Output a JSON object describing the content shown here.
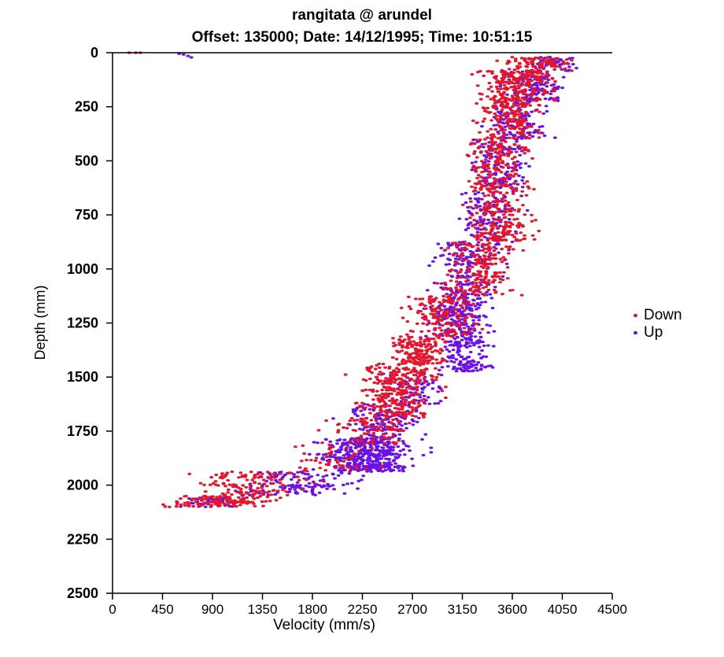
{
  "chart_data": {
    "type": "scatter",
    "title": "rangitata @ arundel",
    "subtitle": "Offset: 135000; Date: 14/12/1995; Time: 10:51:15",
    "xlabel": "Velocity (mm/s)",
    "ylabel": "Depth (mm)",
    "xlim": [
      0,
      4500
    ],
    "ylim": [
      2500,
      0
    ],
    "xticks": [
      "0",
      "450",
      "900",
      "1350",
      "1800",
      "2250",
      "2700",
      "3150",
      "3600",
      "4050",
      "4500"
    ],
    "yticks": [
      "0",
      "250",
      "500",
      "750",
      "1000",
      "1250",
      "1500",
      "1750",
      "2000",
      "2250",
      "2500"
    ],
    "legend_position": "right",
    "series": [
      {
        "name": "Down",
        "color": "#e3162e",
        "trend": [
          {
            "depth": 20,
            "velocity": 3800,
            "spread": 350,
            "count": 60
          },
          {
            "depth": 150,
            "velocity": 3650,
            "spread": 380,
            "count": 160
          },
          {
            "depth": 300,
            "velocity": 3550,
            "spread": 330,
            "count": 120
          },
          {
            "depth": 500,
            "velocity": 3450,
            "spread": 320,
            "count": 130
          },
          {
            "depth": 750,
            "velocity": 3500,
            "spread": 330,
            "count": 140
          },
          {
            "depth": 1000,
            "velocity": 3300,
            "spread": 350,
            "count": 140
          },
          {
            "depth": 1250,
            "velocity": 3000,
            "spread": 380,
            "count": 120
          },
          {
            "depth": 1375,
            "velocity": 2750,
            "spread": 300,
            "count": 110
          },
          {
            "depth": 1500,
            "velocity": 2600,
            "spread": 380,
            "count": 120
          },
          {
            "depth": 1625,
            "velocity": 2550,
            "spread": 380,
            "count": 110
          },
          {
            "depth": 1750,
            "velocity": 2350,
            "spread": 450,
            "count": 60
          },
          {
            "depth": 1875,
            "velocity": 2000,
            "spread": 500,
            "count": 40
          },
          {
            "depth": 2000,
            "velocity": 1250,
            "spread": 550,
            "count": 90
          },
          {
            "depth": 2100,
            "velocity": 1000,
            "spread": 550,
            "count": 90
          }
        ],
        "outliers": [
          {
            "velocity": 150,
            "depth": 0
          },
          {
            "velocity": 210,
            "depth": 0
          },
          {
            "velocity": 250,
            "depth": 0
          }
        ]
      },
      {
        "name": "Up",
        "color": "#6a12e6",
        "trend": [
          {
            "depth": 20,
            "velocity": 3950,
            "spread": 250,
            "count": 40
          },
          {
            "depth": 150,
            "velocity": 3800,
            "spread": 280,
            "count": 90
          },
          {
            "depth": 300,
            "velocity": 3650,
            "spread": 280,
            "count": 80
          },
          {
            "depth": 500,
            "velocity": 3500,
            "spread": 280,
            "count": 90
          },
          {
            "depth": 750,
            "velocity": 3400,
            "spread": 300,
            "count": 90
          },
          {
            "depth": 1000,
            "velocity": 3200,
            "spread": 350,
            "count": 120
          },
          {
            "depth": 1250,
            "velocity": 3150,
            "spread": 330,
            "count": 140
          },
          {
            "depth": 1400,
            "velocity": 3200,
            "spread": 280,
            "count": 90
          },
          {
            "depth": 1550,
            "velocity": 2700,
            "spread": 350,
            "count": 50
          },
          {
            "depth": 1700,
            "velocity": 2450,
            "spread": 350,
            "count": 110
          },
          {
            "depth": 1875,
            "velocity": 2300,
            "spread": 480,
            "count": 300
          },
          {
            "depth": 2000,
            "velocity": 1700,
            "spread": 600,
            "count": 100
          },
          {
            "depth": 2100,
            "velocity": 900,
            "spread": 300,
            "count": 30
          }
        ],
        "outliers": [
          {
            "velocity": 600,
            "depth": 5
          },
          {
            "velocity": 640,
            "depth": 8
          },
          {
            "velocity": 680,
            "depth": 15
          },
          {
            "velocity": 710,
            "depth": 22
          }
        ]
      }
    ]
  }
}
